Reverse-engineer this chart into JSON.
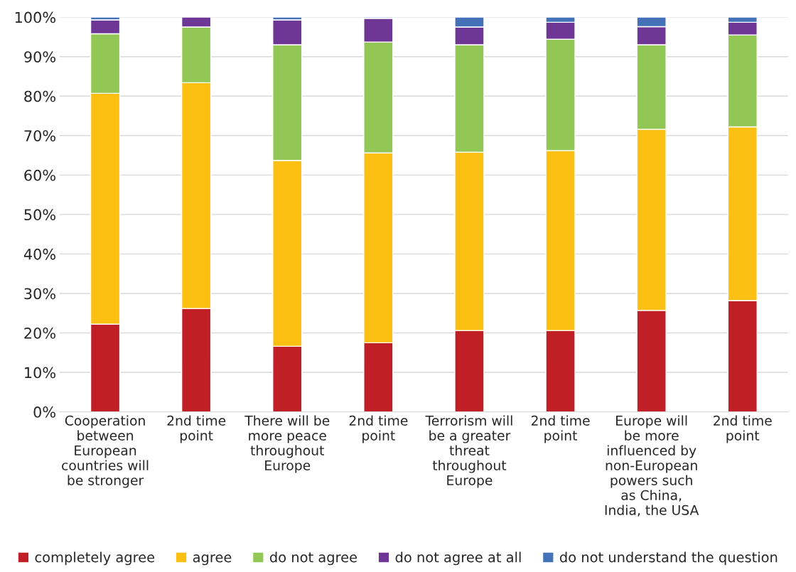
{
  "chart_data": {
    "type": "bar",
    "stacked": true,
    "categories": [
      "Cooperation\nbetween\nEuropean\ncountries will\nbe stronger",
      "2nd time\npoint",
      "There will be\nmore peace\nthroughout\nEurope",
      "2nd time\npoint",
      "Terrorism will\nbe a greater\nthreat\nthroughout\nEurope",
      "2nd time\npoint",
      "Europe will\nbe more\ninfluenced by\nnon-European\npowers such\nas China,\nIndia, the USA",
      "2nd time\npoint"
    ],
    "series": [
      {
        "name": "completely agree",
        "color": "#c01f26",
        "values": [
          22.2,
          26.2,
          16.6,
          17.5,
          20.6,
          20.6,
          25.7,
          28.2
        ]
      },
      {
        "name": "agree",
        "color": "#fbc012",
        "values": [
          58.5,
          57.2,
          47.1,
          48.1,
          45.2,
          45.6,
          45.9,
          44.0
        ]
      },
      {
        "name": "do not agree",
        "color": "#92c755",
        "values": [
          15.1,
          14.1,
          29.3,
          28.1,
          27.2,
          28.2,
          21.4,
          23.3
        ]
      },
      {
        "name": "do not agree at all",
        "color": "#6e3795",
        "values": [
          3.5,
          2.5,
          6.3,
          6.0,
          4.5,
          4.3,
          4.6,
          3.2
        ]
      },
      {
        "name": "do not understand the question",
        "color": "#4472b8",
        "values": [
          0.7,
          null,
          0.7,
          0.3,
          2.5,
          1.3,
          2.4,
          1.3
        ]
      }
    ],
    "ylim": [
      0,
      100
    ],
    "yticks": [
      {
        "value": 0,
        "label": "0%"
      },
      {
        "value": 10,
        "label": "10%"
      },
      {
        "value": 20,
        "label": "20%"
      },
      {
        "value": 30,
        "label": "30%"
      },
      {
        "value": 40,
        "label": "40%"
      },
      {
        "value": 50,
        "label": "50%"
      },
      {
        "value": 60,
        "label": "60%"
      },
      {
        "value": 70,
        "label": "70%"
      },
      {
        "value": 80,
        "label": "80%"
      },
      {
        "value": 90,
        "label": "90%"
      },
      {
        "value": 100,
        "label": "100%"
      }
    ],
    "grid": "y",
    "legend": "bottom"
  }
}
